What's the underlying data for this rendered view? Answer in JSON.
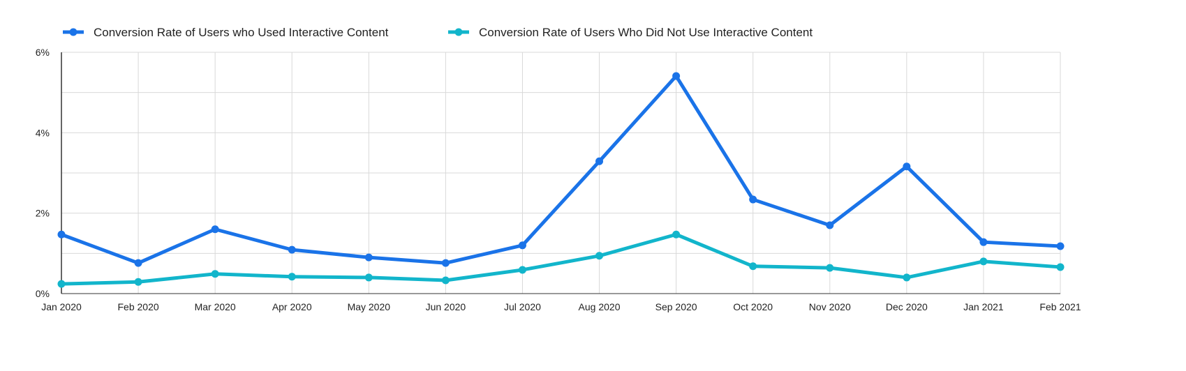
{
  "chart_data": {
    "type": "line",
    "title": "",
    "xlabel": "",
    "ylabel": "",
    "categories": [
      "Jan 2020",
      "Feb 2020",
      "Mar 2020",
      "Apr 2020",
      "May 2020",
      "Jun 2020",
      "Jul 2020",
      "Aug 2020",
      "Sep 2020",
      "Oct 2020",
      "Nov 2020",
      "Dec 2020",
      "Jan 2021",
      "Feb 2021"
    ],
    "ylim": [
      0,
      6
    ],
    "yticks": [
      0,
      2,
      4,
      6
    ],
    "ytick_labels": [
      "0%",
      "2%",
      "4%",
      "6%"
    ],
    "grid": true,
    "legend_placement": "top-left",
    "series": [
      {
        "name": "Conversion Rate of Users who Used Interactive Content",
        "color": "#1a73e8",
        "values": [
          1.47,
          0.76,
          1.6,
          1.09,
          0.9,
          0.76,
          1.2,
          3.29,
          5.41,
          2.34,
          1.7,
          3.16,
          1.28,
          1.18
        ]
      },
      {
        "name": "Conversion Rate of Users Who Did Not Use Interactive Content",
        "color": "#12b5cb",
        "values": [
          0.24,
          0.29,
          0.49,
          0.42,
          0.4,
          0.33,
          0.59,
          0.94,
          1.47,
          0.68,
          0.64,
          0.4,
          0.8,
          0.66
        ]
      }
    ]
  }
}
